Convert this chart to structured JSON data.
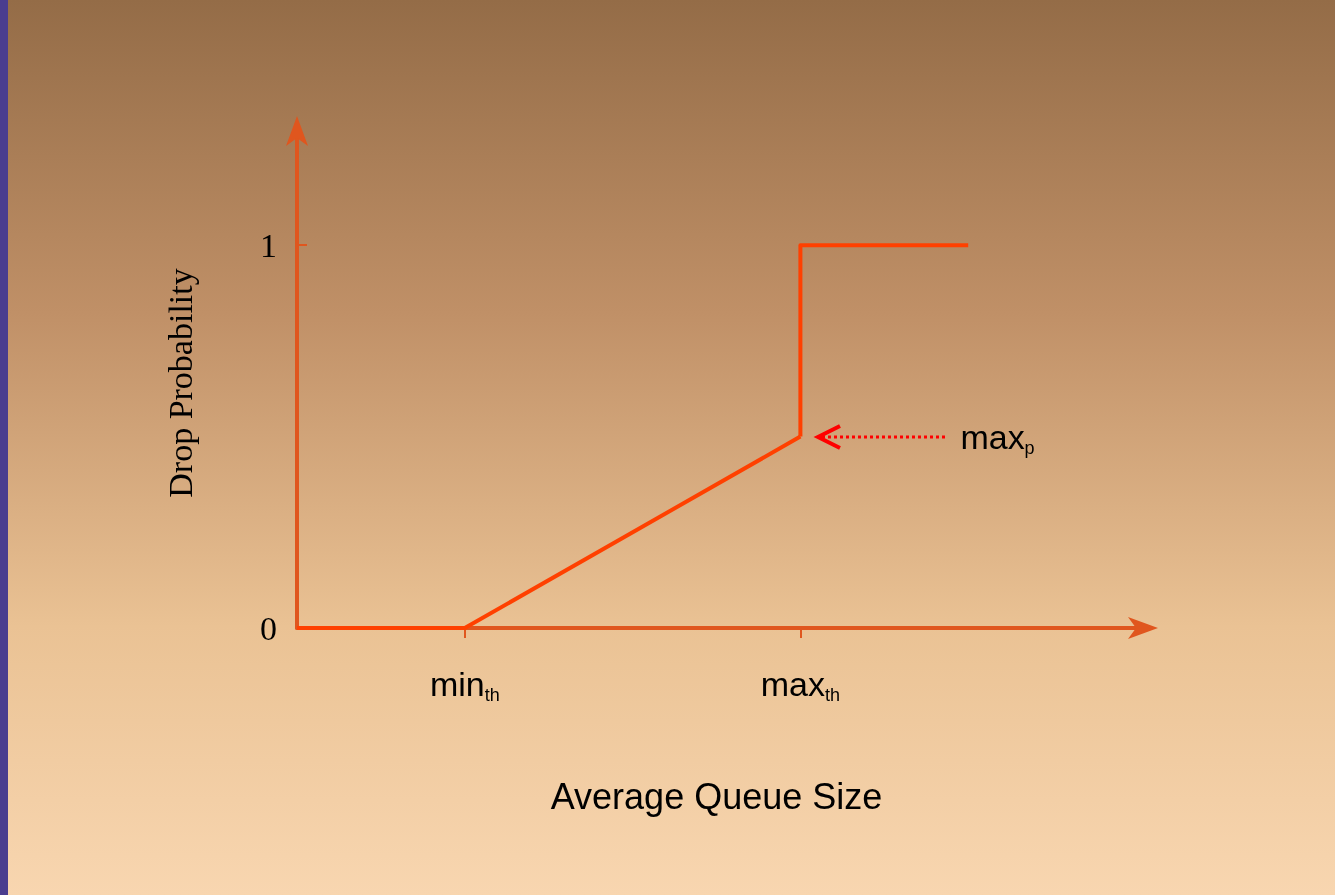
{
  "chart_data": {
    "type": "line",
    "xlabel": "Average Queue Size",
    "ylabel": "Drop Probability",
    "categories": [
      null,
      "min$_{th}$",
      null,
      "max$_{th}$",
      null,
      null
    ],
    "series": [
      {
        "color": "#ff4000",
        "values": [
          0,
          0,
          null,
          0.5,
          null,
          null
        ]
      },
      {
        "type": "step",
        "color": "#ff4000",
        "values": [
          null,
          null,
          null,
          0.5,
          1,
          null
        ]
      }
    ],
    "ylim": [
      0,
      1.28
    ],
    "yticks": [
      0,
      1
    ],
    "annotations": [
      "max$_{p}$"
    ],
    "grid": false,
    "marker": "none",
    "line_style": "solid"
  }
}
